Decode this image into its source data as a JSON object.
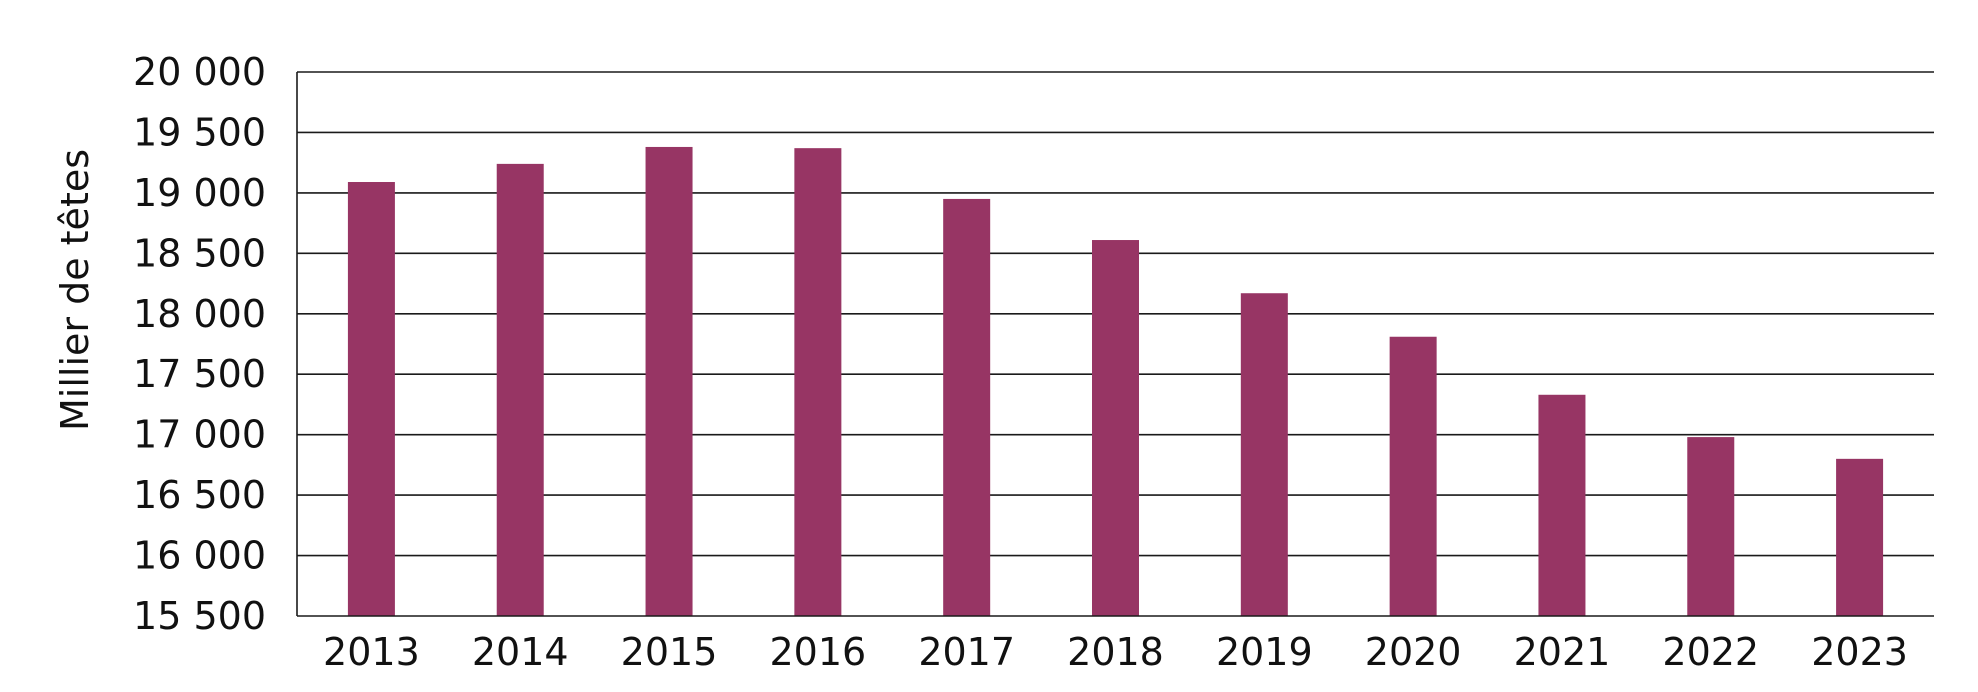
{
  "chart_data": {
    "type": "bar",
    "title": "",
    "xlabel": "",
    "ylabel": "Millier de têtes",
    "categories": [
      "2013",
      "2014",
      "2015",
      "2016",
      "2017",
      "2018",
      "2019",
      "2020",
      "2021",
      "2022",
      "2023"
    ],
    "values": [
      19090,
      19240,
      19380,
      19370,
      18950,
      18610,
      18170,
      17810,
      17330,
      16980,
      16800
    ],
    "ylim": [
      15500,
      20000
    ],
    "yticks": [
      15500,
      16000,
      16500,
      17000,
      17500,
      18000,
      18500,
      19000,
      19500,
      20000
    ],
    "ytick_labels": [
      "15 500",
      "16 000",
      "16 500",
      "17 000",
      "17 500",
      "18 000",
      "18 500",
      "19 000",
      "19 500",
      "20 000"
    ],
    "grid": true,
    "legend": "none",
    "bar_color": "#973564"
  }
}
